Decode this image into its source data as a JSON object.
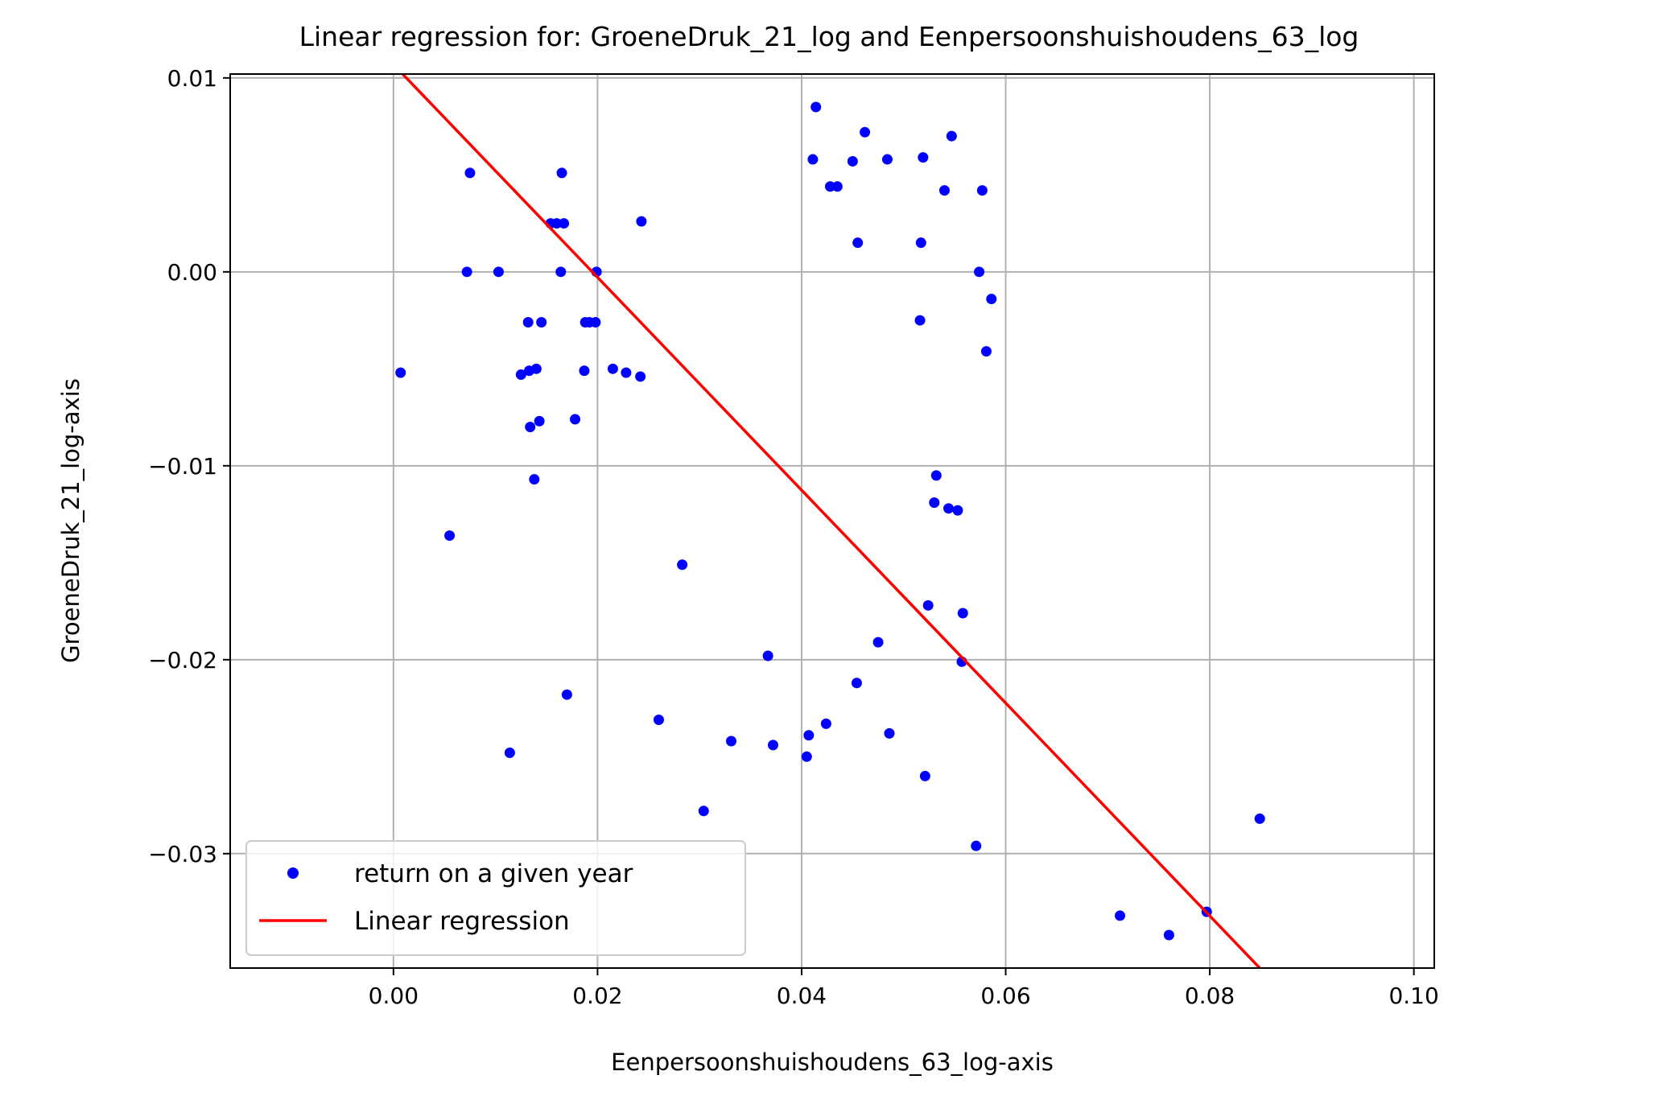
{
  "chart_data": {
    "type": "scatter",
    "title": "Linear regression for: GroeneDruk_21_log and Eenpersoonshuishoudens_63_log",
    "xlabel": "Eenpersoonshuishoudens_63_log-axis",
    "ylabel": "GroeneDruk_21_log-axis",
    "xlim": [
      -0.016,
      0.102
    ],
    "ylim": [
      -0.0359,
      0.0102
    ],
    "xticks": [
      0.0,
      0.02,
      0.04,
      0.06,
      0.08,
      0.1
    ],
    "xtick_labels": [
      "0.00",
      "0.02",
      "0.04",
      "0.06",
      "0.08",
      "0.10"
    ],
    "yticks": [
      -0.03,
      -0.02,
      -0.01,
      0.0,
      0.01
    ],
    "ytick_labels": [
      "−0.03",
      "−0.02",
      "−0.01",
      "0.00",
      "0.01"
    ],
    "grid": true,
    "legend_position": "lower-left",
    "series": [
      {
        "name": "return on a given year",
        "kind": "scatter",
        "color": "#0000ff",
        "points": [
          [
            0.0007,
            -0.0052
          ],
          [
            0.0055,
            -0.0136
          ],
          [
            0.0075,
            0.0051
          ],
          [
            0.0072,
            0.0
          ],
          [
            0.0103,
            0.0
          ],
          [
            0.0114,
            -0.0248
          ],
          [
            0.0125,
            -0.0053
          ],
          [
            0.0132,
            -0.0026
          ],
          [
            0.0134,
            -0.008
          ],
          [
            0.0133,
            -0.0051
          ],
          [
            0.0138,
            -0.0107
          ],
          [
            0.014,
            -0.005
          ],
          [
            0.0143,
            -0.0077
          ],
          [
            0.0145,
            -0.0026
          ],
          [
            0.0154,
            0.0025
          ],
          [
            0.016,
            0.0025
          ],
          [
            0.0165,
            0.0051
          ],
          [
            0.0164,
            0.0
          ],
          [
            0.0167,
            0.0025
          ],
          [
            0.017,
            -0.0218
          ],
          [
            0.0178,
            -0.0076
          ],
          [
            0.0187,
            -0.0051
          ],
          [
            0.0188,
            -0.0026
          ],
          [
            0.0192,
            -0.0026
          ],
          [
            0.0198,
            -0.0026
          ],
          [
            0.0199,
            0.0
          ],
          [
            0.0215,
            -0.005
          ],
          [
            0.0228,
            -0.0052
          ],
          [
            0.0242,
            -0.0054
          ],
          [
            0.0243,
            0.0026
          ],
          [
            0.026,
            -0.0231
          ],
          [
            0.0283,
            -0.0151
          ],
          [
            0.0304,
            -0.0278
          ],
          [
            0.0331,
            -0.0242
          ],
          [
            0.0367,
            -0.0198
          ],
          [
            0.0372,
            -0.0244
          ],
          [
            0.0405,
            -0.025
          ],
          [
            0.0407,
            -0.0239
          ],
          [
            0.0411,
            0.0058
          ],
          [
            0.0414,
            0.0085
          ],
          [
            0.0424,
            -0.0233
          ],
          [
            0.0428,
            0.0044
          ],
          [
            0.0435,
            0.0044
          ],
          [
            0.045,
            0.0057
          ],
          [
            0.0454,
            -0.0212
          ],
          [
            0.0455,
            0.0015
          ],
          [
            0.0462,
            0.0072
          ],
          [
            0.0475,
            -0.0191
          ],
          [
            0.0484,
            0.0058
          ],
          [
            0.0486,
            -0.0238
          ],
          [
            0.0516,
            -0.0025
          ],
          [
            0.0517,
            0.0015
          ],
          [
            0.0519,
            0.0059
          ],
          [
            0.0521,
            -0.026
          ],
          [
            0.0524,
            -0.0172
          ],
          [
            0.053,
            -0.0119
          ],
          [
            0.0532,
            -0.0105
          ],
          [
            0.054,
            0.0042
          ],
          [
            0.0544,
            -0.0122
          ],
          [
            0.0547,
            0.007
          ],
          [
            0.0553,
            -0.0123
          ],
          [
            0.0557,
            -0.0201
          ],
          [
            0.0558,
            -0.0176
          ],
          [
            0.0571,
            -0.0296
          ],
          [
            0.0574,
            0.0
          ],
          [
            0.0577,
            0.0042
          ],
          [
            0.0581,
            -0.0041
          ],
          [
            0.0586,
            -0.0014
          ],
          [
            0.0712,
            -0.0332
          ],
          [
            0.076,
            -0.0342
          ],
          [
            0.0797,
            -0.033
          ],
          [
            0.0849,
            -0.0282
          ]
        ]
      },
      {
        "name": "Linear regression",
        "kind": "line",
        "color": "#ff0000",
        "x": [
          0.0009,
          0.0849
        ],
        "y": [
          0.0102,
          -0.0359
        ]
      }
    ]
  }
}
